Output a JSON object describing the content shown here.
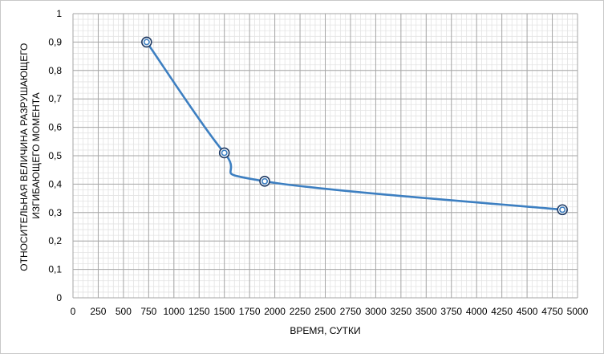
{
  "chart_data": {
    "type": "line",
    "xlabel": "ВРЕМЯ, СУТКИ",
    "ylabel_lines": [
      "ОТНОСИТЕЛЬНАЯ ВЕЛИЧИНА РАЗРУШАЮЩЕГО",
      "ИЗГИБАЮЩЕГО МОМЕНТА"
    ],
    "xlim": [
      0,
      5000
    ],
    "ylim": [
      0,
      1
    ],
    "x_ticks": [
      0,
      250,
      500,
      750,
      1000,
      1250,
      1500,
      1750,
      2000,
      2250,
      2500,
      2750,
      3000,
      3250,
      3500,
      3750,
      4000,
      4250,
      4500,
      4750,
      5000
    ],
    "x_tick_labels": [
      "0",
      "250",
      "500",
      "750",
      "1000",
      "1250",
      "1500",
      "1750",
      "2000",
      "2250",
      "2500",
      "2750",
      "3000",
      "3250",
      "3500",
      "3750",
      "4000",
      "4250",
      "4500",
      "4750",
      "5000"
    ],
    "y_ticks": [
      0,
      0.1,
      0.2,
      0.3,
      0.4,
      0.5,
      0.6,
      0.7,
      0.8,
      0.9,
      1
    ],
    "y_tick_labels": [
      "0",
      "0,1",
      "0,2",
      "0,3",
      "0,4",
      "0,5",
      "0,6",
      "0,7",
      "0,8",
      "0,9",
      "1"
    ],
    "grid": true,
    "series": [
      {
        "x": [
          730,
          1500,
          1900,
          4850
        ],
        "y": [
          0.9,
          0.51,
          0.41,
          0.31
        ],
        "color": "#3d7fc1",
        "marker": "double-circle",
        "smooth": true
      }
    ]
  }
}
